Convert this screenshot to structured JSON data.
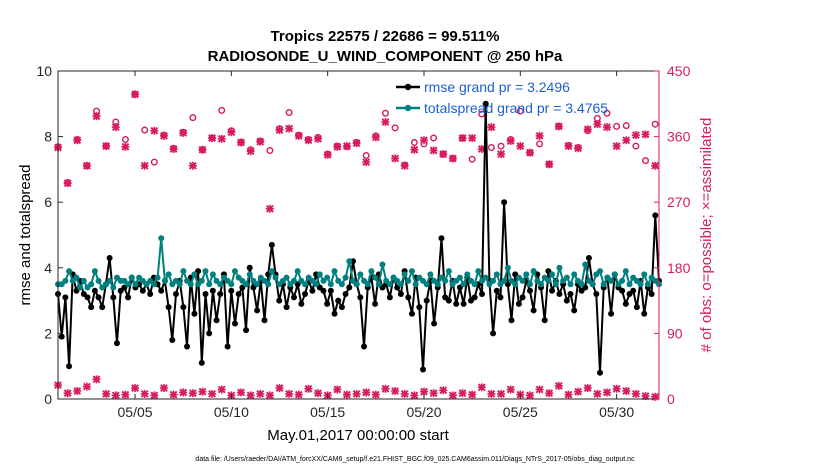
{
  "chart_data": {
    "type": "line",
    "title_line1": "Tropics 22575 / 22686 = 99.511%",
    "title_line2": "RADIOSONDE_U_WIND_COMPONENT @ 250 hPa",
    "xlabel": "May.01,2017 00:00:00 start",
    "ylabel_left": "rmse and totalspread",
    "ylabel_right": "# of obs: o=possible; ×=assimilated",
    "footer": "data file: /Users/raeder/DAI/ATM_forcXX/CAM6_setup/f.e21.FHIST_BGC.f09_025.CAM6assim.011/Diags_NTrS_2017-05/obs_diag_output.nc",
    "xlim": [
      1,
      32.2
    ],
    "ylim_left": [
      0,
      10
    ],
    "ylim_right": [
      0,
      450
    ],
    "x_ticks": [
      5,
      10,
      15,
      20,
      25,
      30
    ],
    "x_tick_labels": [
      "05/05",
      "05/10",
      "05/15",
      "05/20",
      "05/25",
      "05/30"
    ],
    "y_ticks_left": [
      0,
      2,
      4,
      6,
      8,
      10
    ],
    "y_ticks_right": [
      0,
      90,
      180,
      270,
      360,
      450
    ],
    "colors": {
      "rmse": "#000000",
      "spread": "#00807f",
      "obs": "#d81b60",
      "legend_text": "#1f5fd1"
    },
    "series": [
      {
        "name": "rmse",
        "legend": "rmse grand pr = 3.2496",
        "color": "#000000",
        "values": [
          3.2,
          1.9,
          3.1,
          1.0,
          3.8,
          3.3,
          3.6,
          3.2,
          3.1,
          2.8,
          3.3,
          3.1,
          2.8,
          3.5,
          4.3,
          3.1,
          1.7,
          3.3,
          3.4,
          3.1,
          3.7,
          3.4,
          3.5,
          3.3,
          3.5,
          3.2,
          3.7,
          3.5,
          3.3,
          3.6,
          2.8,
          1.8,
          3.2,
          3.6,
          2.8,
          1.6,
          3.7,
          2.6,
          3.9,
          1.1,
          3.2,
          2.0,
          3.3,
          2.4,
          3.2,
          3.8,
          1.6,
          3.3,
          2.3,
          3.2,
          3.4,
          2.1,
          4.0,
          3.4,
          2.7,
          3.6,
          2.4,
          3.8,
          4.7,
          3.8,
          3.0,
          3.5,
          2.8,
          3.4,
          3.1,
          3.5,
          2.9,
          3.2,
          3.6,
          3.3,
          3.8,
          3.4,
          3.3,
          2.9,
          3.3,
          2.6,
          3.0,
          2.8,
          3.2,
          3.4,
          4.2,
          3.5,
          3.1,
          1.6,
          3.4,
          3.7,
          2.9,
          3.8,
          3.4,
          3.5,
          3.1,
          3.7,
          3.4,
          3.2,
          3.9,
          3.1,
          2.6,
          3.7,
          2.8,
          0.9,
          3.0,
          3.6,
          2.3,
          3.4,
          4.9,
          3.1,
          3.0,
          3.6,
          2.9,
          3.4,
          2.9,
          3.7,
          3.0,
          3.1,
          3.5,
          3.2,
          9.0,
          3.6,
          2.0,
          3.3,
          3.1,
          6.0,
          3.5,
          2.4,
          3.8,
          2.9,
          3.1,
          3.6,
          3.3,
          2.7,
          3.8,
          3.4,
          2.4,
          3.9,
          3.3,
          3.6,
          3.2,
          3.5,
          3.0,
          3.2,
          2.7,
          3.5,
          3.3,
          3.4,
          4.3,
          3.5,
          3.2,
          0.8,
          3.4,
          3.7,
          2.6,
          3.8,
          3.4,
          3.3,
          2.9,
          3.2,
          3.3,
          2.8,
          3.6,
          2.6,
          3.4,
          3.2,
          5.6,
          3.6
        ]
      },
      {
        "name": "totalspread",
        "legend": "totalspread grand pr = 3.4765",
        "color": "#00807f",
        "values": [
          3.5,
          3.5,
          3.6,
          3.9,
          3.6,
          3.7,
          3.4,
          3.6,
          3.4,
          3.5,
          3.9,
          3.6,
          3.4,
          3.5,
          3.6,
          3.4,
          3.7,
          3.6,
          3.6,
          3.5,
          3.7,
          3.5,
          3.7,
          3.6,
          3.5,
          3.6,
          3.5,
          3.7,
          4.9,
          3.6,
          3.8,
          3.5,
          3.6,
          3.5,
          3.9,
          3.6,
          3.5,
          3.8,
          3.5,
          3.6,
          3.9,
          3.5,
          3.8,
          3.6,
          3.5,
          3.7,
          3.6,
          3.5,
          3.9,
          3.7,
          3.6,
          3.5,
          3.8,
          3.6,
          3.5,
          3.7,
          3.6,
          3.5,
          3.9,
          3.7,
          3.5,
          3.6,
          3.7,
          3.5,
          3.6,
          3.9,
          3.6,
          3.5,
          3.7,
          3.6,
          3.5,
          3.8,
          3.6,
          3.7,
          3.5,
          3.9,
          3.6,
          3.5,
          3.7,
          4.2,
          3.6,
          3.5,
          3.8,
          3.6,
          3.5,
          3.9,
          3.7,
          3.5,
          4.1,
          3.6,
          3.5,
          3.7,
          3.6,
          3.5,
          3.8,
          3.6,
          3.9,
          3.5,
          3.7,
          3.6,
          3.5,
          3.8,
          3.6,
          3.5,
          3.7,
          3.6,
          3.9,
          3.5,
          3.6,
          3.7,
          3.5,
          3.8,
          3.6,
          3.5,
          3.9,
          3.6,
          3.7,
          3.5,
          3.6,
          3.8,
          3.5,
          3.6,
          4.0,
          3.6,
          3.5,
          3.7,
          3.6,
          3.8,
          3.5,
          3.9,
          3.6,
          3.5,
          3.7,
          3.6,
          3.8,
          3.5,
          4.0,
          3.6,
          3.7,
          3.5,
          3.8,
          3.6,
          3.5,
          4.1,
          3.6,
          3.5,
          3.8,
          3.9,
          3.5,
          3.7,
          3.6,
          3.8,
          3.5,
          3.6,
          3.9,
          3.5,
          3.7,
          3.6,
          3.5,
          3.8,
          3.5,
          3.7,
          3.6,
          3.5
        ]
      }
    ],
    "obs_possible": {
      "name": "possible",
      "marker": "o",
      "x": [
        1.0,
        1.5,
        2.0,
        2.5,
        3.0,
        3.5,
        4.0,
        4.5,
        5.0,
        5.5,
        6.0,
        6.5,
        7.0,
        7.5,
        8.0,
        8.5,
        9.0,
        9.5,
        10.0,
        10.5,
        11.0,
        11.5,
        12.0,
        12.5,
        13.0,
        13.5,
        14.0,
        14.5,
        15.0,
        15.5,
        16.0,
        16.5,
        17.0,
        17.5,
        18.0,
        18.5,
        19.0,
        19.5,
        20.0,
        20.5,
        21.0,
        21.5,
        22.0,
        22.5,
        23.0,
        23.5,
        24.0,
        24.5,
        25.0,
        25.5,
        26.0,
        26.5,
        27.0,
        27.5,
        28.0,
        28.5,
        29.0,
        29.5,
        30.0,
        30.5,
        31.0,
        31.5,
        32.0
      ],
      "values": [
        346,
        297,
        356,
        320,
        395,
        347,
        380,
        356,
        418,
        369,
        325,
        362,
        344,
        366,
        386,
        342,
        358,
        396,
        368,
        352,
        342,
        354,
        341,
        371,
        393,
        362,
        356,
        359,
        336,
        347,
        346,
        352,
        334,
        361,
        392,
        372,
        321,
        352,
        350,
        358,
        336,
        330,
        358,
        329,
        391,
        345,
        347,
        356,
        395,
        338,
        350,
        322,
        374,
        348,
        345,
        368,
        385,
        392,
        374,
        375,
        347,
        327,
        377
      ]
    },
    "obs_assimilated": {
      "name": "assimilated",
      "marker": "x",
      "x": [
        1.0,
        1.5,
        2.0,
        2.5,
        3.0,
        3.5,
        4.0,
        4.5,
        5.0,
        5.5,
        6.0,
        6.5,
        7.0,
        7.5,
        8.0,
        8.5,
        9.0,
        9.5,
        10.0,
        10.5,
        11.0,
        11.5,
        12.0,
        12.5,
        13.0,
        13.5,
        14.0,
        14.5,
        15.0,
        15.5,
        16.0,
        16.5,
        17.0,
        17.5,
        18.0,
        18.5,
        19.0,
        19.5,
        20.0,
        20.5,
        21.0,
        21.5,
        22.0,
        22.5,
        23.0,
        23.5,
        24.0,
        24.5,
        25.0,
        25.5,
        26.0,
        26.5,
        27.0,
        27.5,
        28.0,
        28.5,
        29.0,
        29.5,
        30.0,
        30.5,
        31.0,
        31.5,
        32.0
      ],
      "values": [
        345,
        296,
        355,
        320,
        388,
        347,
        373,
        346,
        418,
        320,
        368,
        361,
        343,
        365,
        320,
        342,
        358,
        357,
        366,
        352,
        340,
        353,
        261,
        369,
        371,
        361,
        355,
        357,
        335,
        346,
        347,
        351,
        325,
        359,
        380,
        330,
        320,
        342,
        355,
        341,
        336,
        330,
        358,
        358,
        343,
        373,
        336,
        354,
        347,
        338,
        361,
        322,
        374,
        347,
        344,
        370,
        377,
        373,
        347,
        355,
        362,
        363,
        320
      ]
    },
    "obs_small": {
      "name": "small-count",
      "x": [
        1.0,
        1.5,
        2.0,
        2.5,
        3.0,
        3.5,
        4.0,
        4.5,
        5.0,
        5.5,
        6.0,
        6.5,
        7.0,
        7.5,
        8.0,
        8.5,
        9.0,
        9.5,
        10.0,
        10.5,
        11.0,
        11.5,
        12.0,
        12.5,
        13.0,
        13.5,
        14.0,
        14.5,
        15.0,
        15.5,
        16.0,
        16.5,
        17.0,
        17.5,
        18.0,
        18.5,
        19.0,
        19.5,
        20.0,
        20.5,
        21.0,
        21.5,
        22.0,
        22.5,
        23.0,
        23.5,
        24.0,
        24.5,
        25.0,
        25.5,
        26.0,
        26.5,
        27.0,
        27.5,
        28.0,
        28.5,
        29.0,
        29.5,
        30.0,
        30.5,
        31.0,
        31.5,
        32.0
      ],
      "values": [
        19,
        8,
        11,
        17,
        27,
        7,
        5,
        6,
        15,
        7,
        5,
        15,
        6,
        9,
        8,
        10,
        7,
        13,
        5,
        9,
        5,
        7,
        5,
        15,
        7,
        6,
        14,
        8,
        5,
        13,
        6,
        7,
        9,
        6,
        14,
        11,
        7,
        5,
        10,
        8,
        12,
        5,
        8,
        6,
        16,
        7,
        7,
        13,
        6,
        5,
        13,
        8,
        18,
        6,
        10,
        15,
        7,
        9,
        14,
        11,
        7,
        4,
        3
      ]
    }
  }
}
